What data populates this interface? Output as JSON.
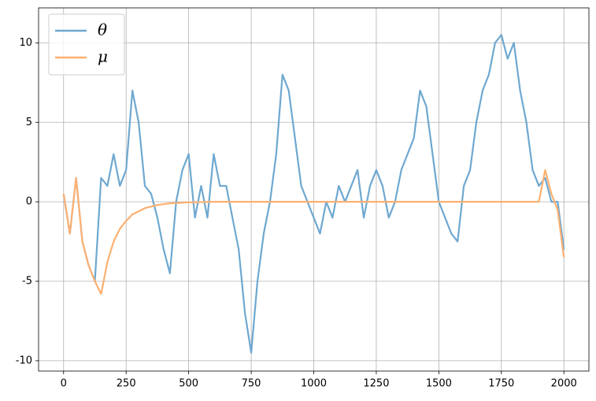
{
  "chart_data": {
    "type": "line",
    "x": [
      0,
      25,
      50,
      75,
      100,
      125,
      150,
      175,
      200,
      225,
      250,
      275,
      300,
      325,
      350,
      375,
      400,
      425,
      450,
      475,
      500,
      525,
      550,
      575,
      600,
      625,
      650,
      675,
      700,
      725,
      750,
      775,
      800,
      825,
      850,
      875,
      900,
      925,
      950,
      975,
      1000,
      1025,
      1050,
      1075,
      1100,
      1125,
      1150,
      1175,
      1200,
      1225,
      1250,
      1275,
      1300,
      1325,
      1350,
      1375,
      1400,
      1425,
      1450,
      1475,
      1500,
      1525,
      1550,
      1575,
      1600,
      1625,
      1650,
      1675,
      1700,
      1725,
      1750,
      1775,
      1800,
      1825,
      1850,
      1875,
      1900,
      1925,
      1950,
      1975,
      2000
    ],
    "series": [
      {
        "name": "θ",
        "color": "#6ea8d0",
        "values": [
          0.5,
          -2,
          1.5,
          -2.5,
          -4,
          -5,
          1.5,
          1,
          3,
          1,
          2,
          7,
          5,
          1,
          0.5,
          -1,
          -3,
          -4.5,
          0,
          2,
          3,
          -1,
          1,
          -1,
          3,
          1,
          1,
          -1,
          -3,
          -7,
          -9.5,
          -5,
          -2,
          0,
          3,
          8,
          7,
          4,
          1,
          0,
          -1,
          -2,
          0,
          -1,
          1,
          0,
          1,
          2,
          -1,
          1,
          2,
          1,
          -1,
          0,
          2,
          3,
          4,
          7,
          6,
          3,
          0,
          -1,
          -2,
          -2.5,
          1,
          2,
          5,
          7,
          8,
          10,
          10.5,
          9,
          10,
          7,
          5,
          2,
          1,
          1.5,
          0,
          0,
          -3
        ]
      },
      {
        "name": "μ",
        "color": "#fdb071",
        "values": [
          0.5,
          -2,
          1.5,
          -2.5,
          -4,
          -5,
          -5.8,
          -3.8,
          -2.5,
          -1.7,
          -1.2,
          -0.8,
          -0.6,
          -0.4,
          -0.3,
          -0.2,
          -0.15,
          -0.1,
          -0.08,
          -0.05,
          -0.04,
          -0.03,
          -0.02,
          -0.01,
          0,
          0,
          0,
          0,
          0,
          0,
          0,
          0,
          0,
          0,
          0,
          0,
          0,
          0,
          0,
          0,
          0,
          0,
          0,
          0,
          0,
          0,
          0,
          0,
          0,
          0,
          0,
          0,
          0,
          0,
          0,
          0,
          0,
          0,
          0,
          0,
          0,
          0,
          0,
          0,
          0,
          0,
          0,
          0,
          0,
          0,
          0,
          0,
          0,
          0,
          0,
          0,
          0,
          2,
          0.5,
          -0.5,
          -3.5
        ]
      }
    ],
    "xlim": [
      -100,
      2100
    ],
    "ylim": [
      -10.65,
      12.2
    ],
    "xticks": [
      0,
      250,
      500,
      750,
      1000,
      1250,
      1500,
      1750,
      2000
    ],
    "yticks": [
      -10,
      -5,
      0,
      5,
      10
    ],
    "grid": true,
    "legend": "upper left"
  }
}
